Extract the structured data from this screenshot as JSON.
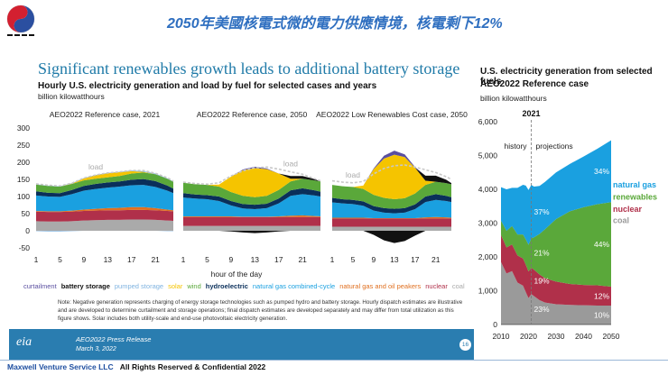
{
  "banner_title": "2050年美國核電式微的電力供應情境，核電剩下12%",
  "slide_title": "Significant renewables growth leads to additional battery storage",
  "chart_title": "Hourly U.S. electricity generation and load by fuel for selected cases and years",
  "chart_unit": "billion kilowatthours",
  "right_title_line1": "U.S. electricity generation from selected fuels",
  "right_title_line2": "AEO2022 Reference case",
  "right_unit": "billion kilowatthours",
  "colors": {
    "curtailment": "#5a4fa0",
    "battery storage": "#111111",
    "pumped storage": "#7fb3e0",
    "solar": "#f5c400",
    "wind": "#5aa83a",
    "hydroelectric": "#0a2f5a",
    "natural gas combined-cycle": "#1aa0e0",
    "natural gas and oil peakers": "#e07020",
    "nuclear": "#b0304a",
    "coal": "#aaaaaa"
  },
  "legend": [
    "curtailment",
    "battery storage",
    "pumped storage",
    "solar",
    "wind",
    "hydroelectric",
    "natural gas combined-cycle",
    "natural gas and oil peakers",
    "nuclear",
    "coal"
  ],
  "note": "Note: Negative generation represents charging of energy storage technologies such as pumped hydro and battery storage. Hourly dispatch estimates are illustrative and are developed to determine curtailment and storage operations; final dispatch estimates are developed separately and may differ from total utilization as this figure shows. Solar includes both utility-scale and end-use photovoltaic electricity generation.",
  "footer": {
    "press": "AEO2022 Press Release",
    "date": "March 3, 2022",
    "page": "16",
    "eia": "eia"
  },
  "footer_company": "Maxwell Venture Service LLC",
  "footer_rights": "All Rights Reserved & Confidential 2022",
  "chart_data": [
    {
      "type": "area",
      "title": "Hourly U.S. electricity generation and load by fuel for selected cases and years",
      "xlabel": "hour of the day",
      "ylabel": "billion kilowatthours",
      "ylim": [
        -50,
        300
      ],
      "yticks": [
        -50,
        0,
        50,
        100,
        150,
        200,
        250,
        300
      ],
      "xticks": [
        1,
        5,
        9,
        13,
        17,
        21
      ],
      "x": [
        1,
        3,
        5,
        7,
        9,
        11,
        13,
        15,
        17,
        19,
        21,
        23,
        24
      ],
      "panels": [
        {
          "title": "AEO2022 Reference case, 2021",
          "load_label": "load",
          "series": [
            {
              "name": "coal",
              "values": [
                28,
                27,
                27,
                28,
                30,
                31,
                32,
                32,
                33,
                33,
                32,
                30,
                29
              ]
            },
            {
              "name": "nuclear",
              "values": [
                28,
                28,
                28,
                28,
                28,
                28,
                28,
                28,
                28,
                28,
                28,
                28,
                28
              ]
            },
            {
              "name": "natural gas and oil peakers",
              "values": [
                2,
                2,
                2,
                3,
                4,
                5,
                6,
                7,
                8,
                8,
                6,
                4,
                3
              ]
            },
            {
              "name": "natural gas combined-cycle",
              "values": [
                45,
                43,
                42,
                48,
                55,
                58,
                60,
                62,
                64,
                65,
                62,
                55,
                50
              ]
            },
            {
              "name": "hydroelectric",
              "values": [
                12,
                11,
                11,
                12,
                14,
                15,
                15,
                15,
                16,
                17,
                17,
                15,
                13
              ]
            },
            {
              "name": "wind",
              "values": [
                20,
                20,
                19,
                18,
                16,
                15,
                15,
                16,
                18,
                19,
                20,
                20,
                20
              ]
            },
            {
              "name": "solar",
              "values": [
                0,
                0,
                0,
                1,
                6,
                10,
                12,
                11,
                7,
                2,
                0,
                0,
                0
              ]
            },
            {
              "name": "pumped storage",
              "values": [
                1,
                1,
                1,
                1,
                1,
                1,
                1,
                1,
                2,
                2,
                2,
                1,
                1
              ]
            }
          ],
          "negative": [
            {
              "name": "pumped storage",
              "values": [
                -1,
                -2,
                -2,
                -1,
                0,
                0,
                0,
                0,
                0,
                0,
                0,
                -1,
                -1
              ]
            }
          ],
          "load": [
            137,
            133,
            131,
            139,
            154,
            163,
            169,
            172,
            176,
            176,
            168,
            155,
            145
          ]
        },
        {
          "title": "AEO2022 Reference case, 2050",
          "load_label": "load",
          "series": [
            {
              "name": "coal",
              "values": [
                14,
                14,
                14,
                14,
                14,
                14,
                14,
                14,
                14,
                14,
                14,
                14,
                14
              ]
            },
            {
              "name": "nuclear",
              "values": [
                26,
                26,
                26,
                26,
                26,
                26,
                26,
                26,
                26,
                26,
                26,
                26,
                26
              ]
            },
            {
              "name": "natural gas and oil peakers",
              "values": [
                2,
                2,
                2,
                2,
                2,
                1,
                1,
                1,
                2,
                4,
                5,
                3,
                2
              ]
            },
            {
              "name": "natural gas combined-cycle",
              "values": [
                55,
                52,
                50,
                45,
                32,
                24,
                22,
                25,
                38,
                58,
                62,
                60,
                58
              ]
            },
            {
              "name": "hydroelectric",
              "values": [
                13,
                12,
                12,
                13,
                13,
                13,
                13,
                13,
                14,
                16,
                17,
                15,
                14
              ]
            },
            {
              "name": "wind",
              "values": [
                30,
                30,
                30,
                29,
                26,
                24,
                22,
                23,
                25,
                26,
                28,
                29,
                30
              ]
            },
            {
              "name": "solar",
              "values": [
                0,
                0,
                0,
                6,
                45,
                75,
                85,
                78,
                48,
                8,
                0,
                0,
                0
              ]
            },
            {
              "name": "battery storage",
              "values": [
                0,
                0,
                0,
                0,
                0,
                0,
                0,
                0,
                0,
                8,
                8,
                4,
                0
              ]
            },
            {
              "name": "curtailment",
              "values": [
                0,
                0,
                0,
                0,
                0,
                2,
                4,
                2,
                0,
                0,
                0,
                0,
                0
              ]
            }
          ],
          "negative": [
            {
              "name": "battery storage",
              "values": [
                0,
                0,
                0,
                0,
                -2,
                -5,
                -7,
                -5,
                -2,
                0,
                0,
                0,
                0
              ]
            }
          ],
          "load": [
            142,
            138,
            136,
            140,
            160,
            175,
            184,
            186,
            180,
            172,
            165,
            152,
            146
          ]
        },
        {
          "title": "AEO2022 Low Renewables Cost case, 2050",
          "load_label": "load",
          "series": [
            {
              "name": "coal",
              "values": [
                12,
                12,
                12,
                12,
                12,
                12,
                12,
                12,
                12,
                12,
                12,
                12,
                12
              ]
            },
            {
              "name": "nuclear",
              "values": [
                24,
                24,
                24,
                24,
                24,
                24,
                24,
                24,
                24,
                24,
                24,
                24,
                24
              ]
            },
            {
              "name": "natural gas and oil peakers",
              "values": [
                2,
                2,
                2,
                2,
                1,
                1,
                1,
                1,
                1,
                3,
                4,
                3,
                2
              ]
            },
            {
              "name": "natural gas combined-cycle",
              "values": [
                45,
                42,
                40,
                35,
                22,
                16,
                14,
                16,
                26,
                45,
                50,
                48,
                46
              ]
            },
            {
              "name": "hydroelectric",
              "values": [
                13,
                12,
                12,
                13,
                13,
                13,
                13,
                13,
                14,
                16,
                17,
                15,
                14
              ]
            },
            {
              "name": "wind",
              "values": [
                38,
                38,
                38,
                36,
                33,
                30,
                28,
                29,
                32,
                34,
                36,
                37,
                38
              ]
            },
            {
              "name": "solar",
              "values": [
                0,
                0,
                0,
                10,
                75,
                115,
                130,
                120,
                75,
                12,
                0,
                0,
                0
              ]
            },
            {
              "name": "battery storage",
              "values": [
                0,
                0,
                0,
                0,
                0,
                0,
                0,
                0,
                0,
                15,
                18,
                10,
                3
              ]
            },
            {
              "name": "curtailment",
              "values": [
                0,
                0,
                0,
                0,
                2,
                8,
                12,
                8,
                2,
                0,
                0,
                0,
                0
              ]
            }
          ],
          "negative": [
            {
              "name": "battery storage",
              "values": [
                0,
                0,
                0,
                0,
                -12,
                -28,
                -36,
                -30,
                -14,
                0,
                0,
                0,
                0
              ]
            }
          ],
          "load": [
            146,
            142,
            140,
            144,
            166,
            182,
            190,
            192,
            186,
            178,
            170,
            158,
            150
          ]
        }
      ]
    },
    {
      "type": "area",
      "title": "U.S. electricity generation from selected fuels",
      "subtitle": "AEO2022 Reference case",
      "ylabel": "billion kilowatthours",
      "ylim": [
        0,
        6000
      ],
      "yticks": [
        0,
        1000,
        2000,
        3000,
        4000,
        5000,
        6000
      ],
      "xticks": [
        2010,
        2020,
        2030,
        2040,
        2050
      ],
      "xlim": [
        2010,
        2050
      ],
      "divider_year": 2021,
      "history_label": "history",
      "projections_label": "projections",
      "x": [
        2010,
        2012,
        2014,
        2016,
        2018,
        2019,
        2020,
        2021,
        2022,
        2024,
        2026,
        2030,
        2035,
        2040,
        2045,
        2050
      ],
      "series": [
        {
          "name": "coal",
          "values": [
            1850,
            1510,
            1580,
            1240,
            1150,
            960,
            780,
            900,
            840,
            720,
            650,
            600,
            580,
            570,
            560,
            560
          ]
        },
        {
          "name": "nuclear",
          "values": [
            800,
            770,
            790,
            805,
            805,
            809,
            790,
            780,
            780,
            760,
            720,
            670,
            620,
            600,
            600,
            560
          ]
        },
        {
          "name": "renewables",
          "values": [
            425,
            490,
            545,
            620,
            710,
            750,
            790,
            870,
            960,
            1200,
            1450,
            1850,
            2150,
            2300,
            2400,
            2500
          ]
        },
        {
          "name": "natural gas",
          "values": [
            990,
            1230,
            1130,
            1380,
            1470,
            1590,
            1620,
            1580,
            1500,
            1420,
            1400,
            1380,
            1400,
            1500,
            1640,
            1830
          ]
        }
      ],
      "end_labels": [
        {
          "name": "natural gas",
          "share_2021": "37%",
          "share_2050": "34%"
        },
        {
          "name": "renewables",
          "share_2021": "21%",
          "share_2050": "44%"
        },
        {
          "name": "nuclear",
          "share_2021": "19%",
          "share_2050": "12%"
        },
        {
          "name": "coal",
          "share_2021": "23%",
          "share_2050": "10%"
        }
      ]
    }
  ]
}
